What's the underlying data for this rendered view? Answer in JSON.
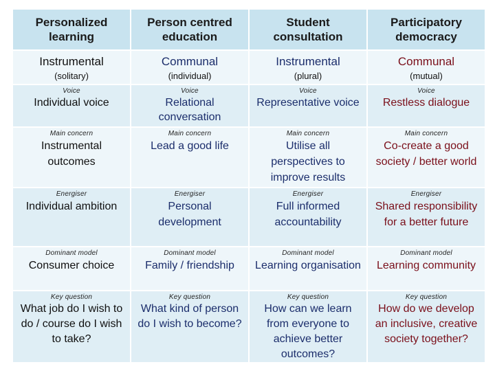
{
  "headers": [
    "Personalized learning",
    "Person centred education",
    "Student consultation",
    "Participatory democracy"
  ],
  "type_row": [
    {
      "main": "Instrumental",
      "sub": "(solitary)"
    },
    {
      "main": "Communal",
      "sub": "(individual)"
    },
    {
      "main": "Instrumental",
      "sub": "(plural)"
    },
    {
      "main": "Communal",
      "sub": "(mutual)"
    }
  ],
  "rows": [
    {
      "label": "Voice",
      "values": [
        "Individual voice",
        "Relational conversation",
        "Representative voice",
        "Restless dialogue"
      ]
    },
    {
      "label": "Main concern",
      "values": [
        "Instrumental outcomes",
        "Lead a good life",
        "Utilise all perspectives to improve results",
        "Co-create a good society / better world"
      ]
    },
    {
      "label": "Energiser",
      "values": [
        "Individual ambition",
        "Personal development",
        "Full informed accountability",
        "Shared responsibility for a better future"
      ]
    },
    {
      "label": "Dominant model",
      "values": [
        "Consumer choice",
        "Family / friendship",
        "Learning organisation",
        "Learning community"
      ]
    },
    {
      "label": "Key question",
      "values": [
        "What job do I wish to do / course do I wish to take?",
        "What kind of person do I wish to become?",
        "How can we learn from everyone to achieve better outcomes?",
        "How do we develop an inclusive, creative society together?"
      ]
    }
  ],
  "colors": {
    "header_bg": "#c8e3ef",
    "row_bg_a": "#dfeef5",
    "row_bg_b": "#eef6fa"
  }
}
